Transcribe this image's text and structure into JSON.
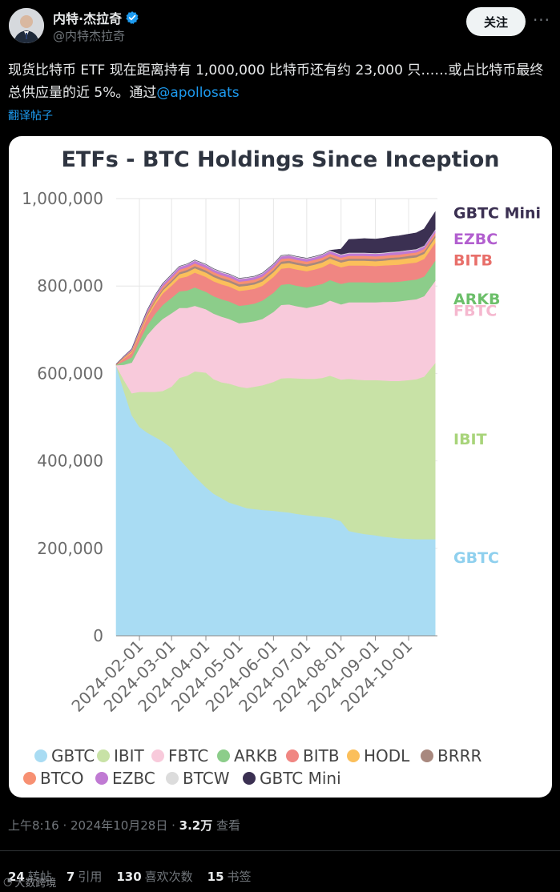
{
  "post": {
    "author_name": "内特·杰拉奇",
    "handle": "@内特杰拉奇",
    "follow_label": "关注",
    "more_label": "···",
    "text_prefix": "现货比特币 ETF 现在距离持有 1,000,000 比特币还有约 23,000 只……或占比特币最终总供应量的近 5%。通过",
    "mention": "@apollosats",
    "translate_label": "翻译帖子",
    "time": "上午8:16 · 2024年10月28日 ·",
    "views": "3.2万",
    "views_label": "查看"
  },
  "stats": [
    {
      "count": "24",
      "label": "转帖"
    },
    {
      "count": "7",
      "label": "引用"
    },
    {
      "count": "130",
      "label": "喜欢次数"
    },
    {
      "count": "15",
      "label": "书签"
    }
  ],
  "watermark": "大数跨境",
  "colors": {
    "GBTC": "#a9dcf3",
    "IBIT": "#c8e2a6",
    "FBTC": "#f8cadb",
    "ARKB": "#8ccd8a",
    "BITB": "#f08682",
    "HODL": "#fbbf5b",
    "BRRR": "#a8887e",
    "BTCO": "#f79072",
    "EZBC": "#c07ad3",
    "BTCW": "#dcdcdc",
    "GBTC Mini": "#3b3052"
  },
  "chart_data": {
    "type": "area",
    "stacked": true,
    "title": "ETFs - BTC Holdings Since Inception",
    "ylim": [
      0,
      1000000
    ],
    "y_ticks": [
      0,
      200000,
      400000,
      600000,
      800000,
      1000000
    ],
    "y_tick_labels": [
      "0",
      "200,000",
      "400,000",
      "600,000",
      "800,000",
      "1,000,000"
    ],
    "x_ticks": [
      "2024-02-01",
      "2024-03-01",
      "2024-04-01",
      "2024-05-01",
      "2024-06-01",
      "2024-07-01",
      "2024-08-01",
      "2024-09-01",
      "2024-10-01"
    ],
    "x": [
      "2024-01-11",
      "2024-01-18",
      "2024-01-25",
      "2024-02-01",
      "2024-02-08",
      "2024-02-15",
      "2024-02-22",
      "2024-03-01",
      "2024-03-08",
      "2024-03-15",
      "2024-03-22",
      "2024-04-01",
      "2024-04-08",
      "2024-04-15",
      "2024-04-22",
      "2024-05-01",
      "2024-05-08",
      "2024-05-15",
      "2024-05-22",
      "2024-06-01",
      "2024-06-08",
      "2024-06-15",
      "2024-06-22",
      "2024-07-01",
      "2024-07-08",
      "2024-07-15",
      "2024-07-22",
      "2024-08-01",
      "2024-08-08",
      "2024-08-15",
      "2024-08-22",
      "2024-09-01",
      "2024-09-08",
      "2024-09-15",
      "2024-09-22",
      "2024-10-01",
      "2024-10-08",
      "2024-10-15",
      "2024-10-25"
    ],
    "series": [
      {
        "name": "GBTC",
        "values": [
          618000,
          560000,
          505000,
          478000,
          465000,
          455000,
          445000,
          430000,
          405000,
          385000,
          365000,
          340000,
          325000,
          315000,
          305000,
          298000,
          292000,
          290000,
          288000,
          286000,
          284000,
          282000,
          279000,
          276000,
          274000,
          272000,
          270000,
          262000,
          240000,
          236000,
          233000,
          230000,
          227000,
          225000,
          223000,
          222000,
          221000,
          221000,
          221000
        ]
      },
      {
        "name": "IBIT",
        "values": [
          0,
          25000,
          50000,
          80000,
          93000,
          103000,
          115000,
          140000,
          185000,
          210000,
          240000,
          262000,
          262000,
          265000,
          272000,
          272000,
          275000,
          280000,
          285000,
          295000,
          305000,
          308000,
          310000,
          312000,
          314000,
          318000,
          325000,
          324000,
          348000,
          350000,
          352000,
          355000,
          357000,
          358000,
          360000,
          363000,
          366000,
          372000,
          403000
        ]
      },
      {
        "name": "FBTC",
        "values": [
          1000,
          35000,
          70000,
          100000,
          130000,
          150000,
          165000,
          168000,
          160000,
          155000,
          150000,
          145000,
          150000,
          150000,
          148000,
          145000,
          150000,
          150000,
          152000,
          160000,
          168000,
          168000,
          165000,
          162000,
          166000,
          168000,
          172000,
          172000,
          175000,
          177000,
          178000,
          178000,
          180000,
          181000,
          182000,
          183000,
          183000,
          184000,
          188000
        ]
      },
      {
        "name": "ARKB",
        "values": [
          1000,
          8000,
          12000,
          16000,
          22000,
          28000,
          32000,
          35000,
          38000,
          40000,
          42000,
          40000,
          40000,
          40000,
          40000,
          40000,
          40000,
          40000,
          42000,
          44000,
          46000,
          47000,
          47000,
          47000,
          47000,
          47000,
          47000,
          47000,
          46000,
          46000,
          46000,
          45000,
          45000,
          45000,
          45000,
          45000,
          45000,
          45000,
          46000
        ]
      },
      {
        "name": "BITB",
        "values": [
          500,
          6000,
          10000,
          14000,
          18000,
          22000,
          26000,
          28000,
          30000,
          32000,
          34000,
          34000,
          34000,
          34000,
          34000,
          34000,
          34000,
          34000,
          34000,
          36000,
          37000,
          37000,
          37000,
          37000,
          37000,
          38000,
          38000,
          38000,
          38000,
          38000,
          38000,
          38000,
          38000,
          39000,
          39000,
          39000,
          39000,
          40000,
          41000
        ]
      },
      {
        "name": "HODL",
        "values": [
          300,
          2000,
          3000,
          4000,
          5000,
          6000,
          7000,
          8000,
          9000,
          10000,
          10000,
          10000,
          10000,
          10000,
          10000,
          10000,
          10000,
          10000,
          10000,
          11000,
          11000,
          11000,
          11000,
          11000,
          11000,
          11000,
          11000,
          11000,
          11000,
          11000,
          11000,
          11000,
          11000,
          12000,
          12000,
          12000,
          12000,
          12000,
          12000
        ]
      },
      {
        "name": "BRRR",
        "values": [
          200,
          1000,
          1500,
          2000,
          2500,
          3000,
          3500,
          4000,
          4500,
          5000,
          5000,
          5000,
          5000,
          5000,
          5000,
          5000,
          5000,
          5000,
          5000,
          5000,
          5000,
          5000,
          5000,
          5000,
          5000,
          5000,
          5000,
          5000,
          5000,
          5000,
          5000,
          5000,
          5000,
          5000,
          5000,
          5000,
          5000,
          5000,
          5000
        ]
      },
      {
        "name": "BTCO",
        "values": [
          200,
          1000,
          2000,
          3000,
          4000,
          5000,
          5500,
          6000,
          6000,
          6000,
          6000,
          6000,
          6000,
          6000,
          6000,
          6000,
          6000,
          6000,
          6000,
          6000,
          6000,
          6000,
          6000,
          6000,
          6000,
          6000,
          6000,
          6000,
          6000,
          6000,
          6000,
          6000,
          6000,
          6000,
          6000,
          6000,
          6000,
          6000,
          6000
        ]
      },
      {
        "name": "EZBC",
        "values": [
          100,
          1000,
          2000,
          3000,
          4000,
          5000,
          5500,
          6000,
          6000,
          6000,
          6000,
          6000,
          6000,
          6000,
          6000,
          6000,
          6000,
          6000,
          6000,
          6000,
          6000,
          6000,
          6000,
          6000,
          6000,
          6000,
          6000,
          6000,
          6000,
          6000,
          6000,
          6000,
          6000,
          6000,
          6000,
          6000,
          6000,
          6000,
          6000
        ]
      },
      {
        "name": "BTCW",
        "values": [
          50,
          500,
          800,
          1000,
          1200,
          1500,
          1500,
          1600,
          1600,
          1600,
          1600,
          1600,
          1600,
          1600,
          1600,
          1600,
          1600,
          1600,
          1600,
          1600,
          1600,
          1600,
          1600,
          1600,
          1600,
          1600,
          1600,
          1600,
          1600,
          1600,
          1600,
          1600,
          1600,
          1600,
          1600,
          1600,
          1600,
          1600,
          1600
        ]
      },
      {
        "name": "GBTC Mini",
        "values": [
          0,
          0,
          0,
          0,
          0,
          0,
          0,
          0,
          0,
          0,
          0,
          0,
          0,
          0,
          0,
          0,
          0,
          0,
          0,
          0,
          0,
          0,
          0,
          0,
          0,
          0,
          0,
          12000,
          30000,
          31000,
          32000,
          32000,
          33000,
          34000,
          35000,
          36000,
          37000,
          38000,
          40000
        ]
      }
    ],
    "right_labels": [
      {
        "name": "GBTC Mini",
        "color": "#3b3052"
      },
      {
        "name": "EZBC",
        "color": "#b25fcf"
      },
      {
        "name": "BITB",
        "color": "#e86f6a"
      },
      {
        "name": "ARKB",
        "color": "#6cbf6a"
      },
      {
        "name": "FBTC",
        "color": "#f5b8cf"
      },
      {
        "name": "IBIT",
        "color": "#a8d47a"
      },
      {
        "name": "GBTC",
        "color": "#8fd0ee"
      }
    ],
    "legend": [
      "GBTC",
      "IBIT",
      "FBTC",
      "ARKB",
      "BITB",
      "HODL",
      "BRRR",
      "BTCO",
      "EZBC",
      "BTCW",
      "GBTC Mini"
    ]
  }
}
